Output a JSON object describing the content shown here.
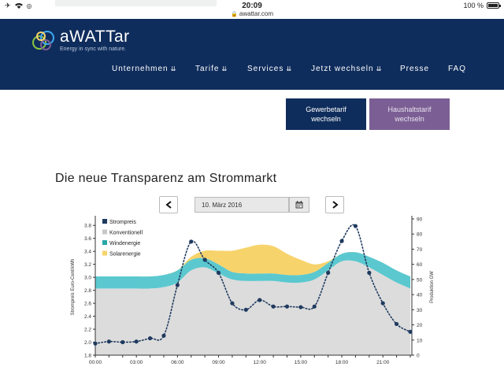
{
  "status_bar": {
    "time": "20:09",
    "url": "awattar.com",
    "battery": "100 %"
  },
  "brand": {
    "name": "aWATTar",
    "tagline": "Energy in sync with nature."
  },
  "nav": {
    "items": [
      {
        "label": "Unternehmen",
        "dropdown": true
      },
      {
        "label": "Tarife",
        "dropdown": true
      },
      {
        "label": "Services",
        "dropdown": true
      },
      {
        "label": "Jetzt wechseln",
        "dropdown": true
      },
      {
        "label": "Presse",
        "dropdown": false
      },
      {
        "label": "FAQ",
        "dropdown": false
      }
    ]
  },
  "tariff_buttons": {
    "gewerbe": {
      "line1": "Gewerbetarif",
      "line2": "wechseln"
    },
    "haushalt": {
      "line1": "Haushaltstarif",
      "line2": "wechseln"
    }
  },
  "headline": "Die neue Transparenz am Strommarkt",
  "date_picker": {
    "value": "10. März 2016"
  },
  "colors": {
    "navy": "#0f2d5c",
    "purple": "#7b5f94",
    "konventionell": "#dcdcdc",
    "wind": "#5bc8cf",
    "solar": "#f7d36b",
    "strompreis": "#1f3a5f"
  },
  "icons": {
    "prev": "chevron-left-icon",
    "next": "chevron-right-icon",
    "calendar": "calendar-icon"
  },
  "chart_data": {
    "type": "area",
    "xlabel": "",
    "ylabel": "Strompreis Euro-Cent/kWh",
    "y2label": "Produktion GW",
    "x_ticks": [
      "00:00",
      "03:00",
      "06:00",
      "09:00",
      "12:00",
      "15:00",
      "18:00",
      "21:00"
    ],
    "y_ticks": [
      "1.8",
      "2.0",
      "2.2",
      "2.4",
      "2.6",
      "2.8",
      "3.0",
      "3.2",
      "3.4",
      "3.6",
      "3.8"
    ],
    "y2_ticks": [
      "0",
      "10",
      "20",
      "30",
      "40",
      "50",
      "60",
      "70",
      "80",
      "90"
    ],
    "ylim": [
      1.8,
      3.9
    ],
    "y2lim": [
      0,
      90
    ],
    "legend": [
      "Strompreis",
      "Konventionell",
      "Windenergie",
      "Solarenergie"
    ],
    "hours": [
      0,
      1,
      2,
      3,
      4,
      5,
      6,
      7,
      8,
      9,
      10,
      11,
      12,
      13,
      14,
      15,
      16,
      17,
      18,
      19,
      20,
      21,
      22,
      23
    ],
    "series": [
      {
        "name": "Konventionell",
        "axis": "GW",
        "values": [
          44,
          44,
          44,
          44,
          44,
          45,
          48,
          56,
          58,
          54,
          50,
          49,
          49,
          49,
          48,
          48,
          50,
          56,
          62,
          62,
          58,
          53,
          48,
          44
        ]
      },
      {
        "name": "Windenergie",
        "axis": "GW",
        "values": [
          8,
          8,
          8,
          8,
          8,
          8,
          8,
          7,
          6,
          6,
          5,
          5,
          5,
          5,
          5,
          5,
          5,
          5,
          5,
          6,
          7,
          8,
          8,
          8
        ]
      },
      {
        "name": "Solarenergie",
        "axis": "GW",
        "values": [
          0,
          0,
          0,
          0,
          0,
          0,
          0,
          2,
          5,
          9,
          14,
          17,
          19,
          18,
          14,
          10,
          5,
          1,
          0,
          0,
          0,
          0,
          0,
          0
        ]
      },
      {
        "name": "Strompreis",
        "axis": "ct",
        "values": [
          1.98,
          2.01,
          2.0,
          2.01,
          2.06,
          2.1,
          2.88,
          3.55,
          3.27,
          3.07,
          2.6,
          2.5,
          2.65,
          2.55,
          2.55,
          2.54,
          2.55,
          3.07,
          3.56,
          3.79,
          3.07,
          2.6,
          2.28,
          2.16
        ]
      }
    ]
  }
}
